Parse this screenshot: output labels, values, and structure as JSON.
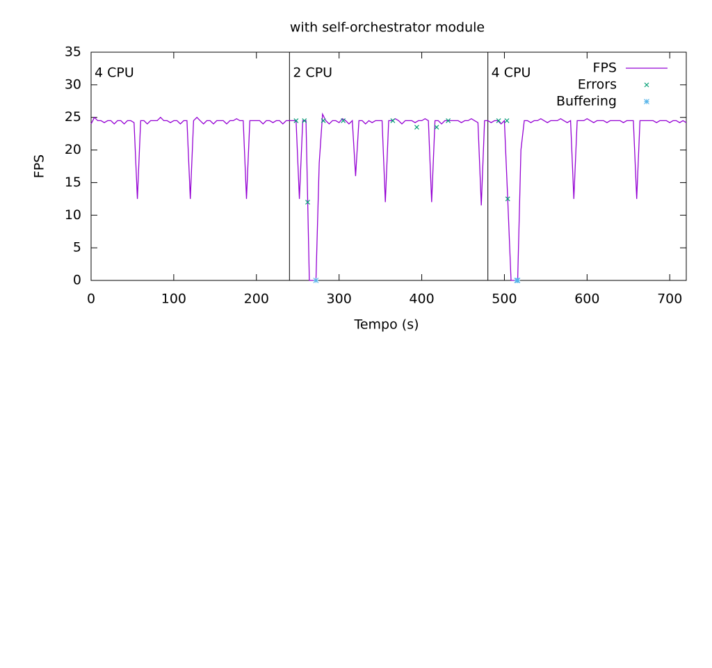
{
  "chart_data": {
    "type": "line",
    "title": "with self-orchestrator module",
    "xlabel": "Tempo (s)",
    "ylabel": "FPS",
    "xlim": [
      0,
      720
    ],
    "ylim": [
      0,
      35
    ],
    "xticks": [
      0,
      100,
      200,
      300,
      400,
      500,
      600,
      700
    ],
    "yticks": [
      0,
      5,
      10,
      15,
      20,
      25,
      30,
      35
    ],
    "legend": "upper right",
    "annotations": [
      {
        "text": "4 CPU",
        "x": 0
      },
      {
        "text": "2 CPU",
        "x": 240
      },
      {
        "text": "4 CPU",
        "x": 480
      }
    ],
    "series": [
      {
        "name": "FPS",
        "color": "#9400d3",
        "marker": "line",
        "x": [
          0,
          4,
          8,
          12,
          16,
          20,
          24,
          28,
          32,
          36,
          40,
          44,
          48,
          52,
          56,
          60,
          64,
          68,
          72,
          76,
          80,
          84,
          88,
          92,
          96,
          100,
          104,
          108,
          112,
          116,
          120,
          124,
          128,
          132,
          136,
          140,
          144,
          148,
          152,
          156,
          160,
          164,
          168,
          172,
          176,
          180,
          184,
          188,
          192,
          196,
          200,
          204,
          208,
          212,
          216,
          220,
          224,
          228,
          232,
          236,
          240,
          244,
          248,
          252,
          256,
          260,
          264,
          268,
          272,
          276,
          280,
          284,
          288,
          292,
          296,
          300,
          304,
          308,
          312,
          316,
          320,
          324,
          328,
          332,
          336,
          340,
          344,
          348,
          352,
          356,
          360,
          364,
          368,
          372,
          376,
          380,
          384,
          388,
          392,
          396,
          400,
          404,
          408,
          412,
          416,
          420,
          424,
          428,
          432,
          436,
          440,
          444,
          448,
          452,
          456,
          460,
          464,
          468,
          472,
          476,
          480,
          484,
          488,
          492,
          496,
          500,
          504,
          508,
          512,
          516,
          520,
          524,
          528,
          532,
          536,
          540,
          544,
          548,
          552,
          556,
          560,
          564,
          568,
          572,
          576,
          580,
          584,
          588,
          592,
          596,
          600,
          604,
          608,
          612,
          616,
          620,
          624,
          628,
          632,
          636,
          640,
          644,
          648,
          652,
          656,
          660,
          664,
          668,
          672,
          676,
          680,
          684,
          688,
          692,
          696,
          700,
          704,
          708,
          712,
          716,
          720
        ],
        "values": [
          24,
          25,
          24.5,
          24.5,
          24.2,
          24.5,
          24.5,
          24,
          24.5,
          24.5,
          24,
          24.5,
          24.5,
          24.2,
          12.5,
          24.5,
          24.5,
          24,
          24.5,
          24.5,
          24.5,
          25,
          24.5,
          24.5,
          24.2,
          24.5,
          24.5,
          24,
          24.5,
          24.5,
          12.5,
          24.5,
          25,
          24.5,
          24,
          24.5,
          24.5,
          24,
          24.5,
          24.5,
          24.5,
          24,
          24.5,
          24.5,
          24.8,
          24.5,
          24.5,
          12.5,
          24.5,
          24.5,
          24.5,
          24.5,
          24,
          24.5,
          24.5,
          24.2,
          24.5,
          24.5,
          24,
          24.5,
          24.5,
          24.5,
          24.5,
          12.5,
          24.5,
          24.5,
          0,
          0,
          0,
          18,
          25.5,
          24.5,
          24,
          24.5,
          24.5,
          24.2,
          24.8,
          24.5,
          24,
          24.5,
          16,
          24.5,
          24.5,
          24,
          24.5,
          24.2,
          24.5,
          24.5,
          24.5,
          12,
          24.5,
          24.5,
          24.8,
          24.5,
          24,
          24.5,
          24.5,
          24.5,
          24.2,
          24.5,
          24.5,
          24.8,
          24.5,
          12,
          24.5,
          24.5,
          24,
          24.5,
          24.5,
          24.5,
          24.5,
          24.5,
          24.2,
          24.5,
          24.5,
          24.8,
          24.5,
          24.2,
          11.5,
          24.5,
          24.5,
          24.2,
          24.5,
          24.5,
          24,
          24.5,
          12.5,
          0,
          0,
          0,
          20,
          24.5,
          24.5,
          24.2,
          24.5,
          24.5,
          24.8,
          24.5,
          24.2,
          24.5,
          24.5,
          24.5,
          24.8,
          24.5,
          24.2,
          24.5,
          12.5,
          24.5,
          24.5,
          24.5,
          24.8,
          24.5,
          24.2,
          24.5,
          24.5,
          24.5,
          24.2,
          24.5,
          24.5,
          24.5,
          24.5,
          24.2,
          24.5,
          24.5,
          24.5,
          12.5,
          24.5,
          24.5,
          24.5,
          24.5,
          24.5,
          24.2,
          24.5,
          24.5,
          24.5,
          24.2,
          24.5,
          24.5,
          24.2,
          24.5,
          24.2
        ]
      },
      {
        "name": "Errors",
        "color": "#009e73",
        "marker": "cross",
        "x": [
          248,
          258,
          262,
          281,
          305,
          365,
          394,
          418,
          432,
          493,
          503,
          504
        ],
        "values": [
          24.5,
          24.5,
          12,
          24.5,
          24.5,
          24.5,
          23.5,
          23.5,
          24.5,
          24.5,
          24.5,
          12.5
        ]
      },
      {
        "name": "Buffering",
        "color": "#56b4e9",
        "marker": "star",
        "x": [
          272,
          515,
          516
        ],
        "values": [
          0,
          0,
          0
        ]
      }
    ]
  }
}
